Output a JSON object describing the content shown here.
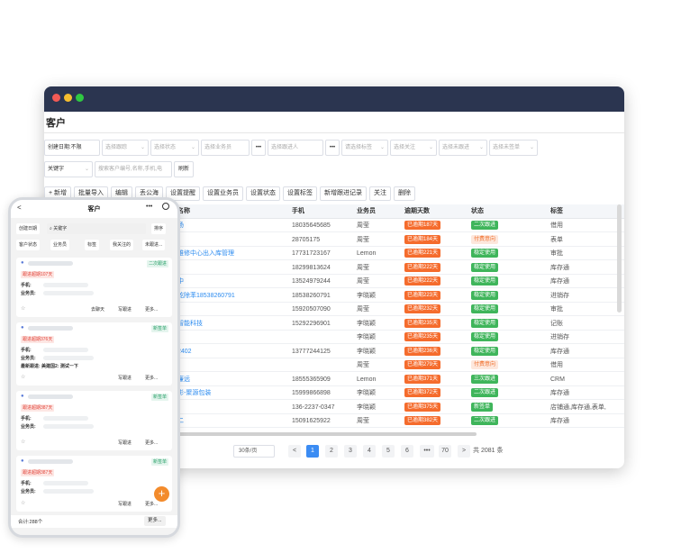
{
  "window": {
    "title": "客户"
  },
  "filters": {
    "row1": [
      "创建日期:不限",
      "选择跟踪",
      "选择状态",
      "选择业务员",
      "选择跟进人",
      "请选择标签",
      "选择关注",
      "选择未跟进",
      "选择未签单"
    ],
    "ellipsis": "•••",
    "keyword_select": "关键字",
    "keyword_placeholder": "搜索客户编号,名称,手机,电",
    "refresh": "刷新"
  },
  "toolbar": [
    "+ 新增",
    "批量导入",
    "编辑",
    "丢公海",
    "设置提醒",
    "设置业务员",
    "设置状态",
    "设置标签",
    "新增跟进记录",
    "关注",
    "删除"
  ],
  "table": {
    "headers": [
      "名称",
      "手机",
      "业务员",
      "逾期天数",
      "状态",
      "标签"
    ],
    "rows": [
      {
        "name": "场",
        "phone": "18035645685",
        "sales": "周莹",
        "overdue": "已逾期187天",
        "status": "二次跟进",
        "status_type": "green",
        "tag": "借用"
      },
      {
        "name": "",
        "phone": "28705175",
        "sales": "周莹",
        "overdue": "已逾期184天",
        "status": "付费意向",
        "status_type": "light",
        "tag": "表单"
      },
      {
        "name": "维修中心出入库管理",
        "phone": "17731723167",
        "sales": "Lemon",
        "overdue": "已逾期221天",
        "status": "稳定使用",
        "status_type": "green",
        "tag": "审批"
      },
      {
        "name": "",
        "phone": "18299813624",
        "sales": "周莹",
        "overdue": "已逾期222天",
        "status": "稳定使用",
        "status_type": "green",
        "tag": "库存通"
      },
      {
        "name": "中",
        "phone": "13524979244",
        "sales": "周莹",
        "overdue": "已逾期222天",
        "status": "稳定使用",
        "status_type": "green",
        "tag": "库存通"
      },
      {
        "name": "乾除苯18538260791",
        "phone": "18538260791",
        "sales": "李晓颖",
        "overdue": "已逾期223天",
        "status": "稳定使用",
        "status_type": "green",
        "tag": "进销存"
      },
      {
        "name": "",
        "phone": "15920507090",
        "sales": "周莹",
        "overdue": "已逾期232天",
        "status": "稳定使用",
        "status_type": "green",
        "tag": "审批"
      },
      {
        "name": "智能科技",
        "phone": "15292296901",
        "sales": "李晓颖",
        "overdue": "已逾期235天",
        "status": "稳定使用",
        "status_type": "green",
        "tag": "记账"
      },
      {
        "name": "",
        "phone": "",
        "sales": "李晓颖",
        "overdue": "已逾期235天",
        "status": "稳定使用",
        "status_type": "green",
        "tag": "进销存"
      },
      {
        "name": "2402",
        "phone": "13777244125",
        "sales": "李晓颖",
        "overdue": "已逾期236天",
        "status": "稳定使用",
        "status_type": "green",
        "tag": "库存通"
      },
      {
        "name": "",
        "phone": "",
        "sales": "周莹",
        "overdue": "已逾期279天",
        "status": "付费意向",
        "status_type": "light",
        "tag": "借用"
      },
      {
        "name": "廉远",
        "phone": "18555365909",
        "sales": "Lemon",
        "overdue": "已逾期371天",
        "status": "三次跟进",
        "status_type": "green",
        "tag": "CRM"
      },
      {
        "name": "影-聚源包装",
        "phone": "15999866898",
        "sales": "李晓颖",
        "overdue": "已逾期372天",
        "status": "二次跟进",
        "status_type": "green",
        "tag": "库存通"
      },
      {
        "name": "",
        "phone": "136-2237-0347",
        "sales": "李晓颖",
        "overdue": "已逾期375天",
        "status": "新签单",
        "status_type": "green",
        "tag": "店铺通,库存通,表单,"
      },
      {
        "name": "二",
        "phone": "15091625922",
        "sales": "周莹",
        "overdue": "已逾期382天",
        "status": "二次跟进",
        "status_type": "green",
        "tag": "库存通"
      }
    ]
  },
  "pager": {
    "page_size": "30条/页",
    "pages": [
      "1",
      "2",
      "3",
      "4",
      "5",
      "6",
      "•••",
      "70"
    ],
    "prev": "<",
    "next": ">",
    "total": "共 2081 条"
  },
  "phone": {
    "back": "<",
    "title": "客户",
    "more": "•••",
    "filter_date": "创建日期",
    "search": "关键字",
    "sort": "排序",
    "tabs": [
      "客户状态",
      "业务员",
      "标签",
      "我关注的",
      "未跟进..."
    ],
    "cards": [
      {
        "tag": "二次跟进",
        "overdue": "跟进超期107天",
        "lines": [
          "手机:",
          "业务员:"
        ],
        "actions": [
          "去聊天",
          "写跟进",
          "更多..."
        ]
      },
      {
        "tag": "新签单",
        "overdue": "跟进超期376天",
        "lines": [
          "手机:",
          "业务员:",
          "最新跟进: 美建国2: 测试一下"
        ],
        "actions": [
          "写跟进",
          "更多..."
        ]
      },
      {
        "tag": "新签单",
        "overdue": "跟进超期387天",
        "lines": [
          "手机:",
          "业务员:"
        ],
        "actions": [
          "写跟进",
          "更多..."
        ]
      },
      {
        "tag": "新签单",
        "overdue": "跟进超期387天",
        "lines": [
          "手机:",
          "业务员:"
        ],
        "actions": [
          "写跟进",
          "更多..."
        ]
      }
    ],
    "total": "合计:288个",
    "more_btn": "更多..."
  }
}
